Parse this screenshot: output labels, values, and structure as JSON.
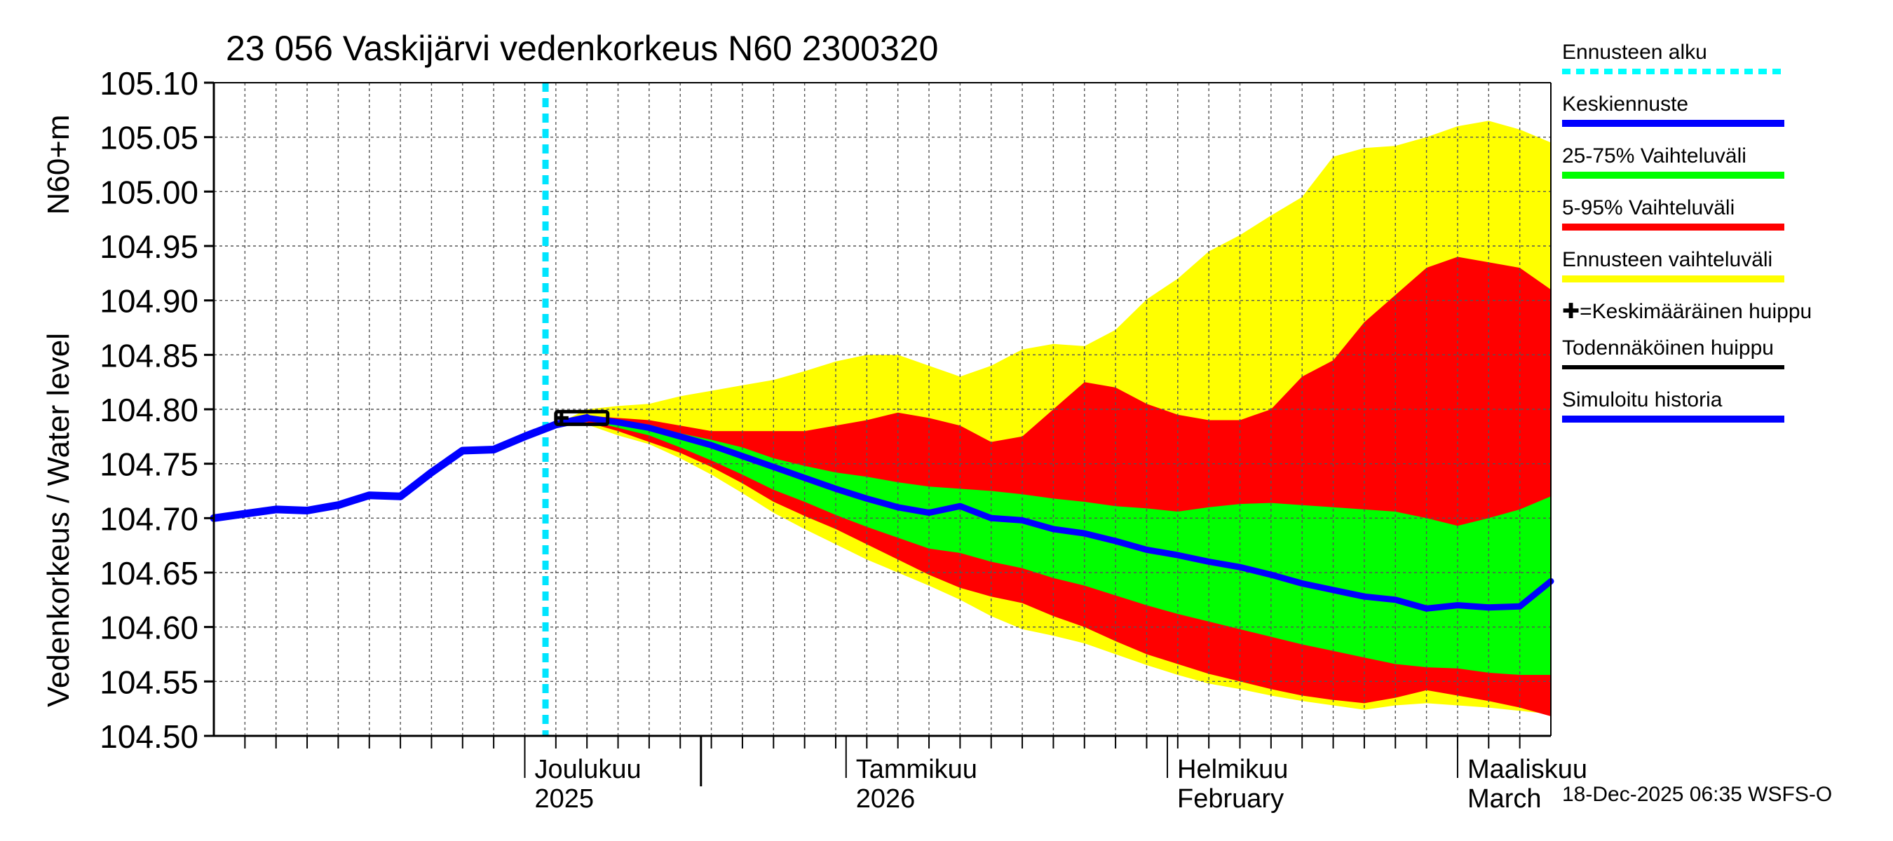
{
  "chart_data": {
    "type": "area",
    "title": "23 056 Vaskijärvi vedenkorkeus N60 2300320",
    "ylabel": "Vedenkorkeus / Water level",
    "ylabel_unit": "N60+m",
    "xlabel": "",
    "ylim": [
      104.5,
      105.1
    ],
    "yticks": [
      "104.50",
      "104.55",
      "104.60",
      "104.65",
      "104.70",
      "104.75",
      "104.80",
      "104.85",
      "104.90",
      "104.95",
      "105.00",
      "105.05",
      "105.10"
    ],
    "xlim_days": [
      0,
      129
    ],
    "x_axis": {
      "start_date": "2025-11-01",
      "month_labels": [
        {
          "day": 30,
          "line1": "Joulukuu",
          "line2": "2025"
        },
        {
          "day": 61,
          "line1": "Tammikuu",
          "line2": "2026"
        },
        {
          "day": 92,
          "line1": "Helmikuu",
          "line2": "February"
        },
        {
          "day": 120,
          "line1": "Maaliskuu",
          "line2": "March"
        }
      ],
      "year_boundary_day": 47
    },
    "forecast_start_day": 32,
    "x_days": [
      0,
      3,
      6,
      9,
      12,
      15,
      18,
      21,
      24,
      27,
      30,
      33,
      36,
      39,
      42,
      45,
      48,
      51,
      54,
      57,
      60,
      63,
      66,
      69,
      72,
      75,
      78,
      81,
      84,
      87,
      90,
      93,
      96,
      99,
      102,
      105,
      108,
      111,
      114,
      117,
      120,
      123,
      126,
      129
    ],
    "simulated_history": [
      104.7,
      104.704,
      104.708,
      104.707,
      104.712,
      104.721,
      104.72,
      104.742,
      104.762,
      104.763,
      104.775,
      104.786,
      104.792
    ],
    "series": [
      {
        "name": "Keskiennuste",
        "color": "#0000ff",
        "values": [
          null,
          null,
          null,
          null,
          null,
          null,
          null,
          null,
          null,
          null,
          null,
          104.786,
          104.792,
          104.788,
          104.783,
          104.775,
          104.767,
          104.757,
          104.747,
          104.737,
          104.727,
          104.718,
          104.71,
          104.705,
          104.711,
          104.7,
          104.698,
          104.69,
          104.686,
          104.679,
          104.671,
          104.666,
          104.66,
          104.655,
          104.648,
          104.64,
          104.634,
          104.628,
          104.625,
          104.617,
          104.62,
          104.618,
          104.619,
          104.642
        ]
      },
      {
        "name": "25-75% Vaihteluväli (upper)",
        "color": "#00ff00",
        "values": [
          null,
          null,
          null,
          null,
          null,
          null,
          null,
          null,
          null,
          null,
          null,
          104.786,
          104.793,
          104.79,
          104.786,
          104.778,
          104.772,
          104.765,
          104.755,
          104.748,
          104.742,
          104.738,
          104.733,
          104.729,
          104.727,
          104.725,
          104.722,
          104.718,
          104.715,
          104.711,
          104.709,
          104.706,
          104.71,
          104.713,
          104.714,
          104.712,
          104.71,
          104.708,
          104.706,
          104.7,
          104.693,
          104.7,
          104.708,
          104.72
        ]
      },
      {
        "name": "25-75% Vaihteluväli (lower)",
        "color": "#00ff00",
        "values": [
          null,
          null,
          null,
          null,
          null,
          null,
          null,
          null,
          null,
          null,
          null,
          104.786,
          104.79,
          104.783,
          104.776,
          104.765,
          104.753,
          104.74,
          104.726,
          104.715,
          104.703,
          104.692,
          104.682,
          104.672,
          104.668,
          104.66,
          104.654,
          104.645,
          104.638,
          104.629,
          104.62,
          104.612,
          104.605,
          104.598,
          104.591,
          104.584,
          104.578,
          104.572,
          104.566,
          104.563,
          104.562,
          104.558,
          104.556,
          104.556
        ]
      },
      {
        "name": "5-95% Vaihteluväli (upper)",
        "color": "#ff0000",
        "values": [
          null,
          null,
          null,
          null,
          null,
          null,
          null,
          null,
          null,
          null,
          null,
          104.786,
          104.794,
          104.792,
          104.79,
          104.785,
          104.78,
          104.78,
          104.78,
          104.78,
          104.785,
          104.79,
          104.797,
          104.792,
          104.785,
          104.77,
          104.775,
          104.8,
          104.825,
          104.82,
          104.805,
          104.795,
          104.79,
          104.79,
          104.8,
          104.83,
          104.845,
          104.88,
          104.905,
          104.93,
          104.94,
          104.935,
          104.93,
          104.91
        ]
      },
      {
        "name": "5-95% Vaihteluväli (lower)",
        "color": "#ff0000",
        "values": [
          null,
          null,
          null,
          null,
          null,
          null,
          null,
          null,
          null,
          null,
          null,
          104.786,
          104.788,
          104.78,
          104.77,
          104.76,
          104.747,
          104.732,
          104.715,
          104.702,
          104.69,
          104.676,
          104.662,
          104.648,
          104.636,
          104.628,
          104.622,
          104.61,
          104.6,
          104.587,
          104.575,
          104.566,
          104.557,
          104.55,
          104.543,
          104.537,
          104.533,
          104.53,
          104.535,
          104.542,
          104.537,
          104.532,
          104.526,
          104.518
        ]
      },
      {
        "name": "Ennusteen vaihteluväli (upper)",
        "color": "#ffff00",
        "values": [
          null,
          null,
          null,
          null,
          null,
          null,
          null,
          null,
          null,
          null,
          null,
          104.786,
          104.8,
          104.803,
          104.805,
          104.812,
          104.817,
          104.822,
          104.827,
          104.835,
          104.844,
          104.85,
          104.85,
          104.84,
          104.83,
          104.84,
          104.855,
          104.86,
          104.858,
          104.873,
          104.901,
          104.92,
          104.945,
          104.96,
          104.978,
          104.995,
          105.032,
          105.04,
          105.042,
          105.05,
          105.06,
          105.065,
          105.057,
          105.045
        ]
      },
      {
        "name": "Ennusteen vaihteluväli (lower)",
        "color": "#ffff00",
        "values": [
          null,
          null,
          null,
          null,
          null,
          null,
          null,
          null,
          null,
          null,
          null,
          104.786,
          104.786,
          104.776,
          104.768,
          104.755,
          104.74,
          104.723,
          104.705,
          104.69,
          104.676,
          104.662,
          104.65,
          104.638,
          104.625,
          104.61,
          104.598,
          104.592,
          104.585,
          104.575,
          104.565,
          104.556,
          104.548,
          104.543,
          104.537,
          104.532,
          104.528,
          104.524,
          104.528,
          104.53,
          104.528,
          104.526,
          104.523,
          104.52
        ]
      }
    ],
    "probable_peak": {
      "day_start": 33,
      "day_end": 38,
      "value": 104.792
    },
    "legend": [
      {
        "label": "Ennusteen alku",
        "color": "#00ffff",
        "style": "dotted"
      },
      {
        "label": "Keskiennuste",
        "color": "#0000ff",
        "style": "solid"
      },
      {
        "label": "25-75% Vaihteluväli",
        "color": "#00ff00",
        "style": "solid"
      },
      {
        "label": "5-95% Vaihteluväli",
        "color": "#ff0000",
        "style": "solid"
      },
      {
        "label": "Ennusteen vaihteluväli",
        "color": "#ffff00",
        "style": "solid"
      },
      {
        "label": "✚=Keskimääräinen huippu",
        "color": "",
        "style": "none"
      },
      {
        "label": "Todennäköinen huippu",
        "color": "#000000",
        "style": "solid"
      },
      {
        "label": "Simuloitu historia",
        "color": "#0000ff",
        "style": "solid"
      }
    ],
    "footer": "18-Dec-2025 06:35 WSFS-O"
  }
}
